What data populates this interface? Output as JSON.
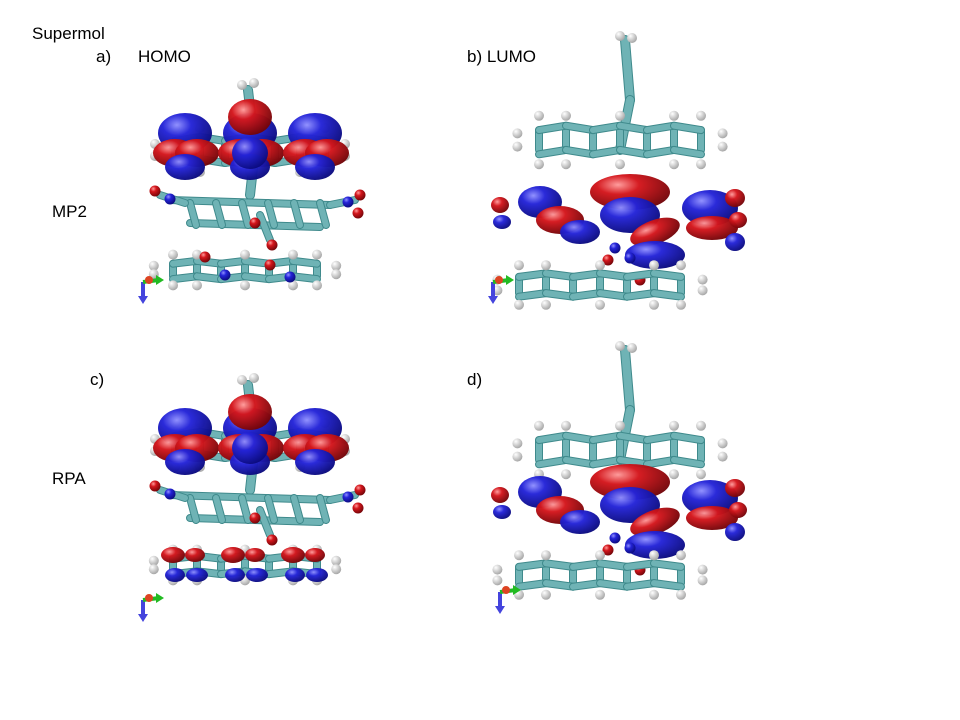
{
  "figure": {
    "header": "Supermol",
    "rows": [
      {
        "method": "MP2",
        "panels": [
          {
            "letter": "a)",
            "title": "HOMO",
            "orbital": "homo"
          },
          {
            "letter": "b) LUMO",
            "title": "",
            "orbital": "lumo"
          }
        ]
      },
      {
        "method": "RPA",
        "panels": [
          {
            "letter": "c)",
            "title": "",
            "orbital": "homo"
          },
          {
            "letter": "d)",
            "title": "",
            "orbital": "lumo"
          }
        ]
      }
    ]
  },
  "colors": {
    "background": "#ffffff",
    "bond": "#6fb3b5",
    "bond_dark": "#3f8a8c",
    "hydrogen": "#e6e6e6",
    "oxygen": "#d0141a",
    "nitrogen": "#2b2bd0",
    "lobe_positive": "#1515c8",
    "lobe_negative": "#cc1218",
    "axis_x": "#22bb22",
    "axis_y": "#4444dd",
    "axis_z": "#dd4422"
  },
  "icons": [
    "axes-triad-icon"
  ]
}
